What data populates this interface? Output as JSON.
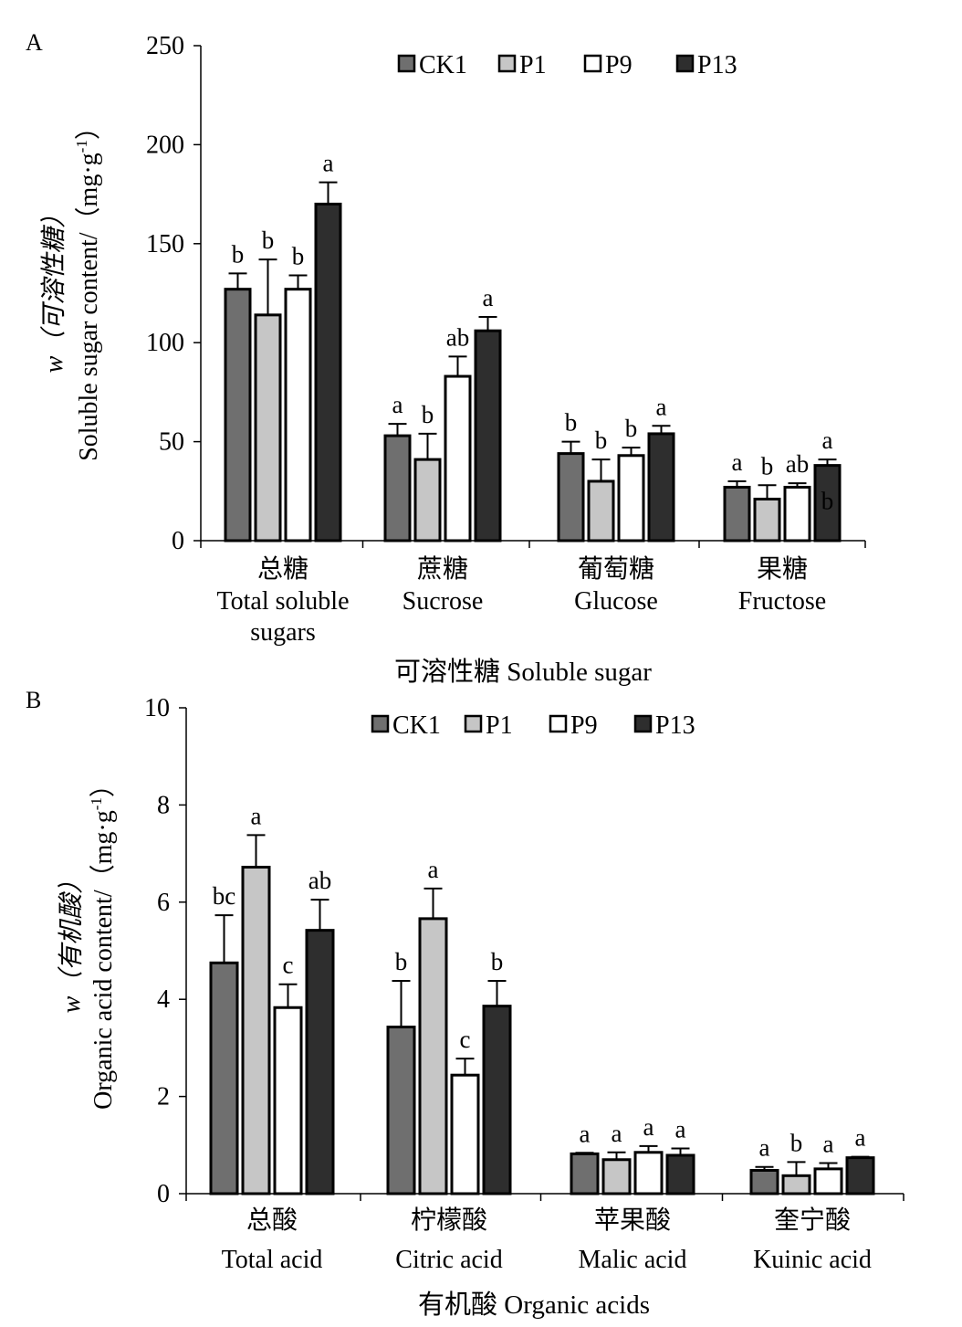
{
  "colors": {
    "CK1": "#6f6f6f",
    "P1": "#c6c6c6",
    "P9": "#ffffff",
    "P13": "#2e2e2e"
  },
  "chart_data": [
    {
      "panel": "A",
      "type": "bar",
      "ylabel_line1": "w（可溶性糖）",
      "ylabel_line2": "Soluble sugar content/（mg·g",
      "ylabel_sup": "-1",
      "ylabel_close": "）",
      "xlabel": "可溶性糖 Soluble sugar",
      "ylim": [
        0,
        250
      ],
      "yticks": [
        0,
        50,
        100,
        150,
        200,
        250
      ],
      "legend_position": "top",
      "legend": [
        "CK1",
        "P1",
        "P9",
        "P13"
      ],
      "categories": [
        {
          "zh": "总糖",
          "en": [
            "Total soluble",
            "sugars"
          ]
        },
        {
          "zh": "蔗糖",
          "en": [
            "Sucrose"
          ]
        },
        {
          "zh": "葡萄糖",
          "en": [
            "Glucose"
          ]
        },
        {
          "zh": "果糖",
          "en": [
            "Fructose"
          ]
        }
      ],
      "series": [
        {
          "name": "CK1",
          "values": [
            127,
            53,
            44,
            27
          ],
          "errors": [
            8,
            6,
            6,
            3
          ],
          "letters": [
            "b",
            "a",
            "b",
            "a"
          ]
        },
        {
          "name": "P1",
          "values": [
            114,
            41,
            30,
            21
          ],
          "errors": [
            28,
            13,
            11,
            7
          ],
          "letters": [
            "b",
            "b",
            "b",
            "b"
          ]
        },
        {
          "name": "P9",
          "values": [
            127,
            83,
            43,
            27
          ],
          "errors": [
            7,
            10,
            4,
            2
          ],
          "letters": [
            "b",
            "ab",
            "b",
            "ab"
          ]
        },
        {
          "name": "P13",
          "values": [
            170,
            106,
            54,
            38
          ],
          "errors": [
            11,
            7,
            4,
            3
          ],
          "letters": [
            "a",
            "a",
            "a",
            "a"
          ]
        }
      ],
      "extra_labels": [
        {
          "text": "b",
          "category": 3,
          "series": 3,
          "y": 16
        }
      ]
    },
    {
      "panel": "B",
      "type": "bar",
      "ylabel_line1": "w（有机酸）",
      "ylabel_line2": "Organic acid content/（mg·g",
      "ylabel_sup": "-1",
      "ylabel_close": "）",
      "xlabel": "有机酸 Organic acids",
      "ylim": [
        0,
        10
      ],
      "yticks": [
        0,
        2,
        4,
        6,
        8,
        10
      ],
      "legend_position": "top",
      "legend": [
        "CK1",
        "P1",
        "P9",
        "P13"
      ],
      "categories": [
        {
          "zh": "总酸",
          "en": [
            "Total acid"
          ]
        },
        {
          "zh": "柠檬酸",
          "en": [
            "Citric acid"
          ]
        },
        {
          "zh": "苹果酸",
          "en": [
            "Malic acid"
          ]
        },
        {
          "zh": "奎宁酸",
          "en": [
            "Kuinic acid"
          ]
        }
      ],
      "series": [
        {
          "name": "CK1",
          "values": [
            4.75,
            3.43,
            0.82,
            0.48
          ],
          "errors": [
            0.98,
            0.95,
            0.02,
            0.07
          ],
          "letters": [
            "bc",
            "b",
            "a",
            "a"
          ]
        },
        {
          "name": "P1",
          "values": [
            6.72,
            5.66,
            0.7,
            0.37
          ],
          "errors": [
            0.66,
            0.62,
            0.15,
            0.28
          ],
          "letters": [
            "a",
            "a",
            "a",
            "b"
          ]
        },
        {
          "name": "P9",
          "values": [
            3.83,
            2.44,
            0.85,
            0.51
          ],
          "errors": [
            0.48,
            0.34,
            0.13,
            0.12
          ],
          "letters": [
            "c",
            "c",
            "a",
            "a"
          ]
        },
        {
          "name": "P13",
          "values": [
            5.42,
            3.86,
            0.79,
            0.74
          ],
          "errors": [
            0.63,
            0.52,
            0.14,
            0.02
          ],
          "letters": [
            "ab",
            "b",
            "a",
            "a"
          ]
        }
      ],
      "extra_labels": []
    }
  ]
}
